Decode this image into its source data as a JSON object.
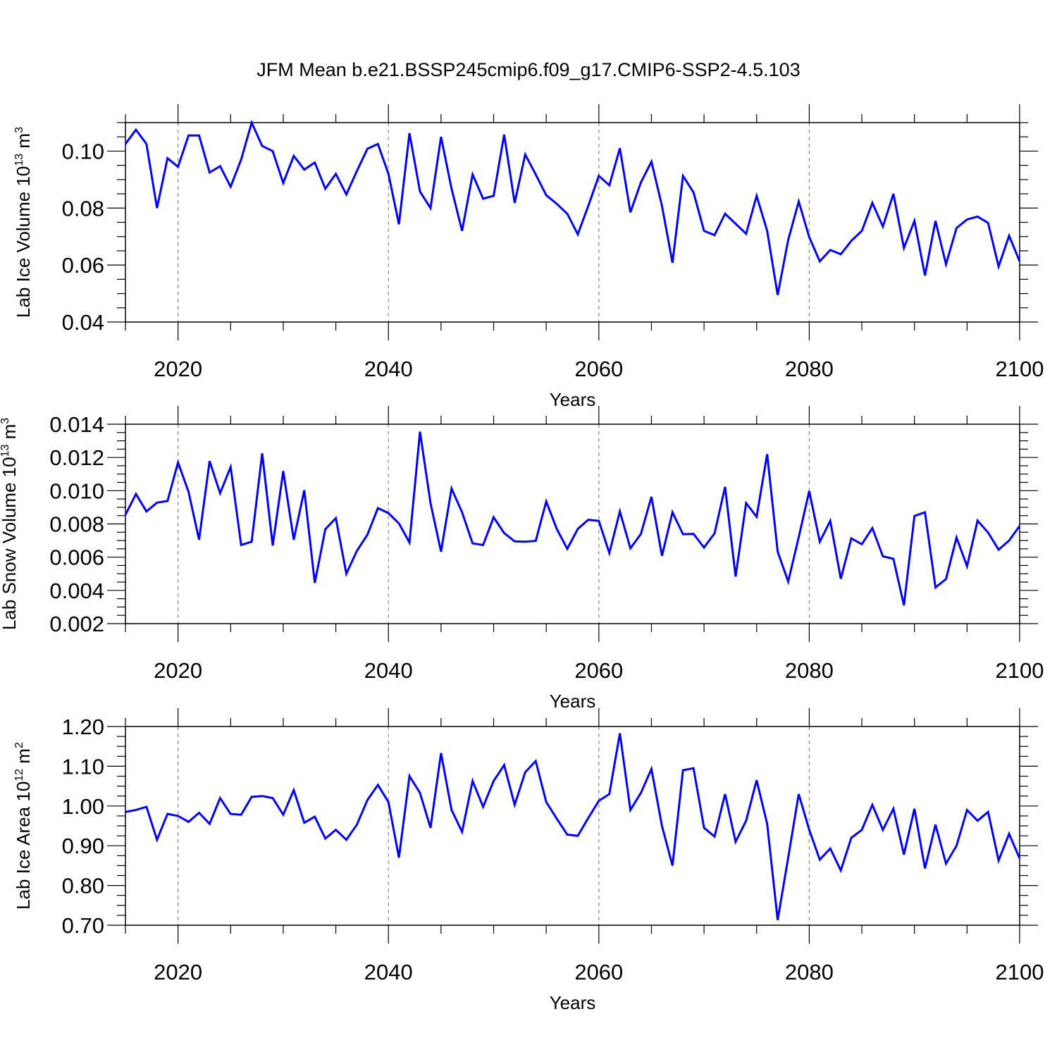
{
  "title": "JFM Mean b.e21.BSSP245cmip6.f09_g17.CMIP6-SSP2-4.5.103",
  "colors": {
    "line": "#0000ff",
    "axis": "#000000",
    "grid": "#888888"
  },
  "chart_data": [
    {
      "type": "line",
      "name": "ice-volume",
      "ylabel": "Lab Ice Volume 10",
      "ylabel_exp": "13",
      "ylabel_unit": " m",
      "ylabel_unit_exp": "3",
      "xlabel": "Years",
      "xlim": [
        2015,
        2100
      ],
      "ylim": [
        0.04,
        0.11
      ],
      "yticks": [
        0.04,
        0.06,
        0.08,
        0.1
      ],
      "ytick_labels": [
        "0.04",
        "0.06",
        "0.08",
        "0.10"
      ],
      "yminor_step": 0.005,
      "xticks": [
        2020,
        2040,
        2060,
        2080,
        2100
      ],
      "xtick_labels": [
        "2020",
        "2040",
        "2060",
        "2080",
        "2100"
      ],
      "x_start": 2015,
      "values": [
        0.1025,
        0.1075,
        0.1025,
        0.08,
        0.0975,
        0.0945,
        0.1055,
        0.1055,
        0.0925,
        0.0947,
        0.0875,
        0.097,
        0.11,
        0.1018,
        0.1,
        0.0888,
        0.0983,
        0.0935,
        0.096,
        0.0868,
        0.092,
        0.0848,
        0.093,
        0.1008,
        0.1025,
        0.092,
        0.0743,
        0.1063,
        0.0858,
        0.08,
        0.105,
        0.0868,
        0.072,
        0.0918,
        0.0833,
        0.0843,
        0.1058,
        0.0818,
        0.0988,
        0.0918,
        0.0845,
        0.0815,
        0.078,
        0.0708,
        0.0808,
        0.0913,
        0.088,
        0.101,
        0.0785,
        0.089,
        0.0963,
        0.0808,
        0.0608,
        0.0913,
        0.0855,
        0.072,
        0.0705,
        0.078,
        0.0745,
        0.071,
        0.0843,
        0.072,
        0.0495,
        0.0688,
        0.0823,
        0.0698,
        0.0613,
        0.0653,
        0.0638,
        0.0685,
        0.072,
        0.0818,
        0.0735,
        0.085,
        0.066,
        0.0755,
        0.0563,
        0.0755,
        0.0603,
        0.073,
        0.076,
        0.077,
        0.0748,
        0.0595,
        0.0703,
        0.0613
      ]
    },
    {
      "type": "line",
      "name": "snow-volume",
      "ylabel": "Lab Snow Volume 10",
      "ylabel_exp": "13",
      "ylabel_unit": " m",
      "ylabel_unit_exp": "3",
      "xlabel": "Years",
      "xlim": [
        2015,
        2100
      ],
      "ylim": [
        0.002,
        0.014
      ],
      "yticks": [
        0.002,
        0.004,
        0.006,
        0.008,
        0.01,
        0.012,
        0.014
      ],
      "ytick_labels": [
        "0.002",
        "0.004",
        "0.006",
        "0.008",
        "0.010",
        "0.012",
        "0.014"
      ],
      "yminor_step": 0.0005,
      "xticks": [
        2020,
        2040,
        2060,
        2080,
        2100
      ],
      "xtick_labels": [
        "2020",
        "2040",
        "2060",
        "2080",
        "2100"
      ],
      "x_start": 2015,
      "values": [
        0.00855,
        0.0098,
        0.00875,
        0.00928,
        0.00938,
        0.0117,
        0.00993,
        0.00705,
        0.01178,
        0.00985,
        0.01142,
        0.00673,
        0.00693,
        0.01225,
        0.0067,
        0.01118,
        0.00705,
        0.01003,
        0.00445,
        0.00768,
        0.00835,
        0.005,
        0.00638,
        0.00735,
        0.00895,
        0.00865,
        0.00803,
        0.00688,
        0.01355,
        0.00925,
        0.00633,
        0.01013,
        0.0087,
        0.00683,
        0.00673,
        0.0084,
        0.00745,
        0.00695,
        0.00693,
        0.00698,
        0.00935,
        0.0077,
        0.0065,
        0.0077,
        0.00825,
        0.00818,
        0.00625,
        0.00875,
        0.00653,
        0.0074,
        0.00963,
        0.00608,
        0.0087,
        0.00738,
        0.0074,
        0.00658,
        0.00743,
        0.01023,
        0.00483,
        0.00925,
        0.00843,
        0.0122,
        0.00633,
        0.00453,
        0.0072,
        0.00998,
        0.00693,
        0.00818,
        0.0047,
        0.00713,
        0.00678,
        0.00775,
        0.00605,
        0.0059,
        0.0031,
        0.00848,
        0.0087,
        0.00418,
        0.00468,
        0.00718,
        0.00545,
        0.0082,
        0.00748,
        0.00645,
        0.007,
        0.00788
      ]
    },
    {
      "type": "line",
      "name": "ice-area",
      "ylabel": "Lab Ice Area 10",
      "ylabel_exp": "12",
      "ylabel_unit": " m",
      "ylabel_unit_exp": "2",
      "xlabel": "Years",
      "xlim": [
        2015,
        2100
      ],
      "ylim": [
        0.7,
        1.2
      ],
      "yticks": [
        0.7,
        0.8,
        0.9,
        1.0,
        1.1,
        1.2
      ],
      "ytick_labels": [
        "0.70",
        "0.80",
        "0.90",
        "1.00",
        "1.10",
        "1.20"
      ],
      "yminor_step": 0.025,
      "xticks": [
        2020,
        2040,
        2060,
        2080,
        2100
      ],
      "xtick_labels": [
        "2020",
        "2040",
        "2060",
        "2080",
        "2100"
      ],
      "x_start": 2015,
      "values": [
        0.985,
        0.99,
        0.998,
        0.915,
        0.98,
        0.975,
        0.96,
        0.983,
        0.955,
        1.02,
        0.98,
        0.978,
        1.023,
        1.025,
        1.02,
        0.978,
        1.04,
        0.958,
        0.973,
        0.918,
        0.94,
        0.915,
        0.953,
        1.015,
        1.053,
        1.01,
        0.87,
        1.075,
        1.033,
        0.945,
        1.133,
        0.99,
        0.935,
        1.063,
        0.998,
        1.063,
        1.103,
        1.003,
        1.085,
        1.113,
        1.01,
        0.968,
        0.928,
        0.925,
        0.97,
        1.013,
        1.03,
        1.183,
        0.99,
        1.033,
        1.093,
        0.95,
        0.85,
        1.09,
        1.095,
        0.945,
        0.923,
        1.03,
        0.91,
        0.963,
        1.065,
        0.955,
        0.713,
        0.87,
        1.03,
        0.94,
        0.865,
        0.893,
        0.838,
        0.92,
        0.94,
        1.003,
        0.94,
        0.993,
        0.878,
        0.993,
        0.843,
        0.953,
        0.855,
        0.9,
        0.99,
        0.963,
        0.985,
        0.863,
        0.93,
        0.868
      ]
    }
  ]
}
